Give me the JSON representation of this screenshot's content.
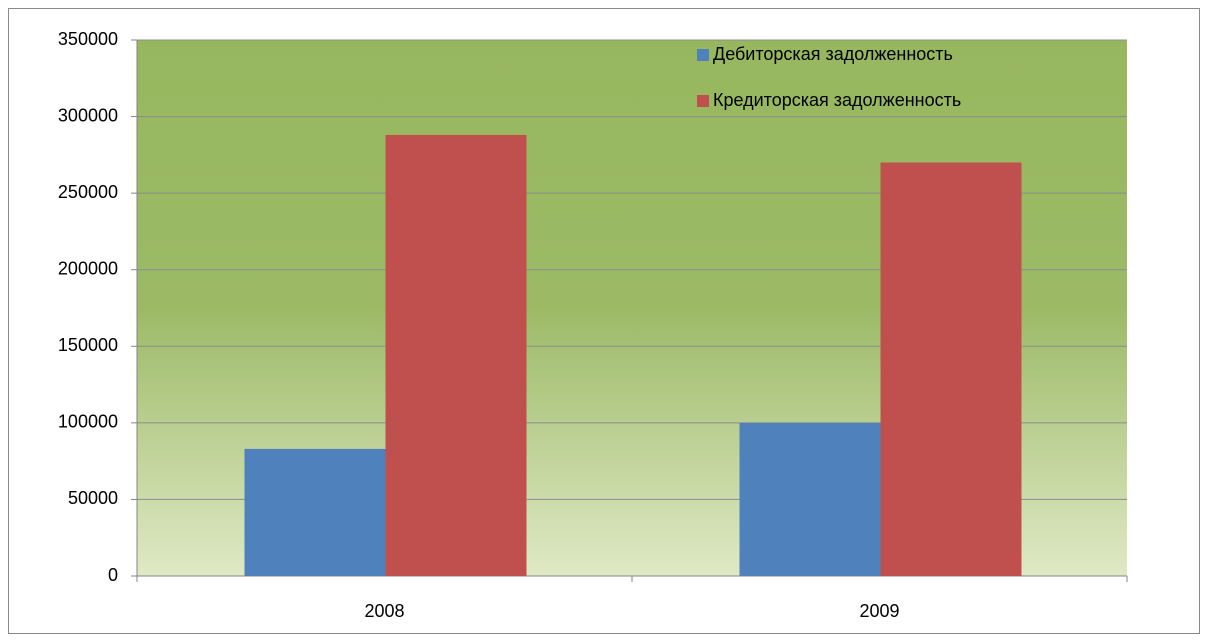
{
  "chart_data": {
    "type": "bar",
    "categories": [
      "2008",
      "2009"
    ],
    "series": [
      {
        "name": "Дебиторская задолженность",
        "color": "#4f81bd",
        "values": [
          83000,
          100000
        ]
      },
      {
        "name": "Кредиторская задолженность",
        "color": "#c0504d",
        "values": [
          288000,
          270000
        ]
      }
    ],
    "ylim": [
      0,
      350000
    ],
    "yticks": [
      0,
      50000,
      100000,
      150000,
      200000,
      250000,
      300000,
      350000
    ],
    "grid": true,
    "legend": "upper-right"
  }
}
